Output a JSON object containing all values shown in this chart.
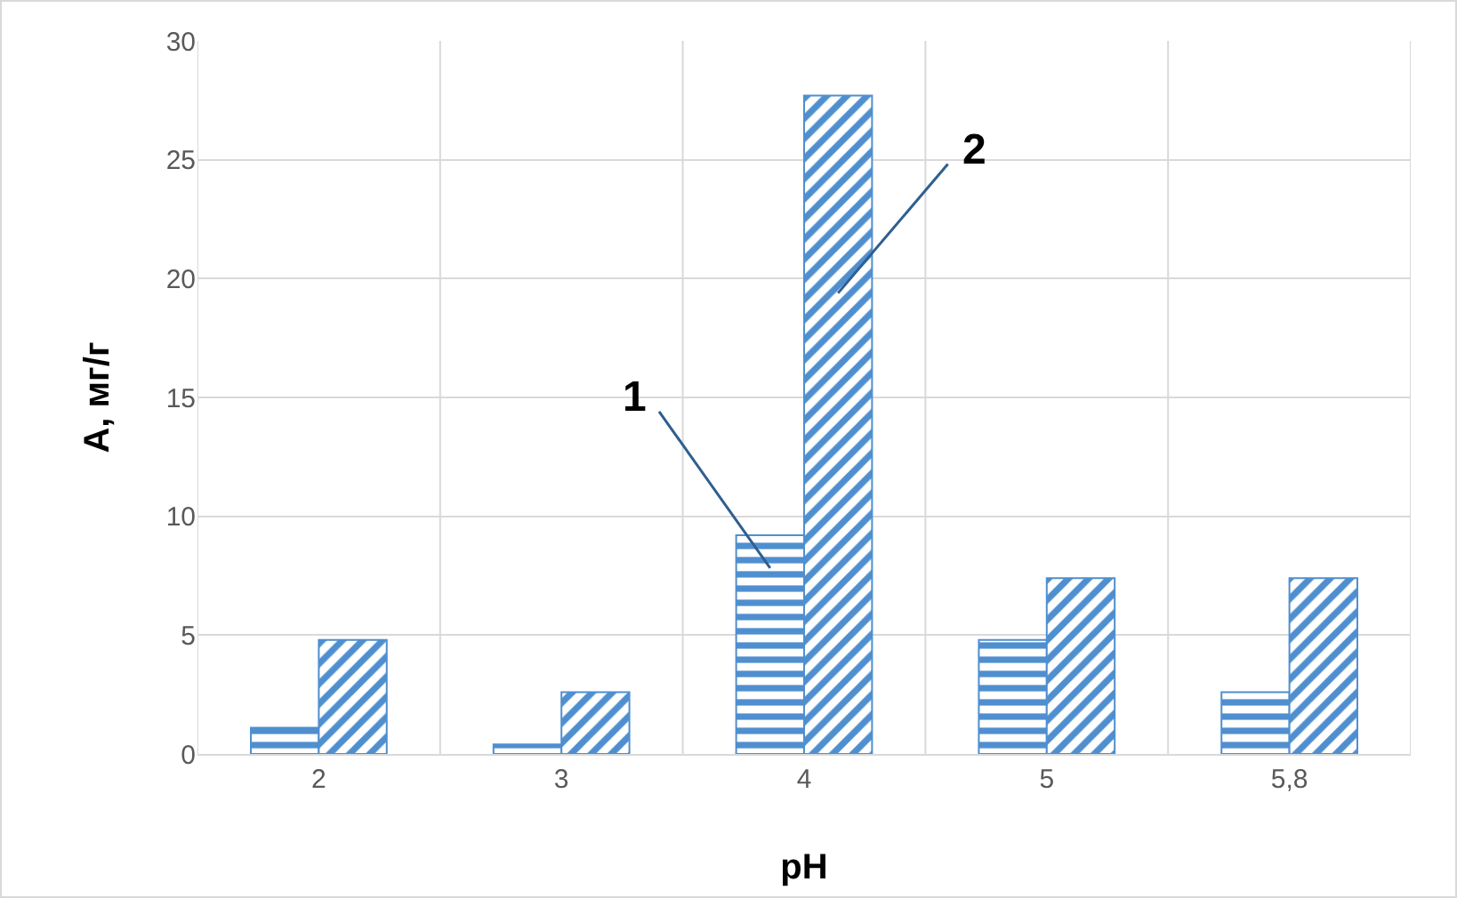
{
  "chart_data": {
    "type": "bar",
    "xlabel": "pH",
    "ylabel": "A, мг/г",
    "categories": [
      "2",
      "3",
      "4",
      "5",
      "5,8"
    ],
    "series": [
      {
        "name": "1",
        "color": "#4f8fcf",
        "values": [
          1.1,
          0.4,
          9.2,
          4.8,
          2.6
        ]
      },
      {
        "name": "2",
        "color": "#4f8fcf",
        "values": [
          4.8,
          2.6,
          27.7,
          7.4,
          7.4
        ]
      }
    ],
    "ylim": [
      0,
      30
    ],
    "yticks": [
      0,
      5,
      10,
      15,
      20,
      25,
      30
    ],
    "grid": true,
    "legend": false
  }
}
